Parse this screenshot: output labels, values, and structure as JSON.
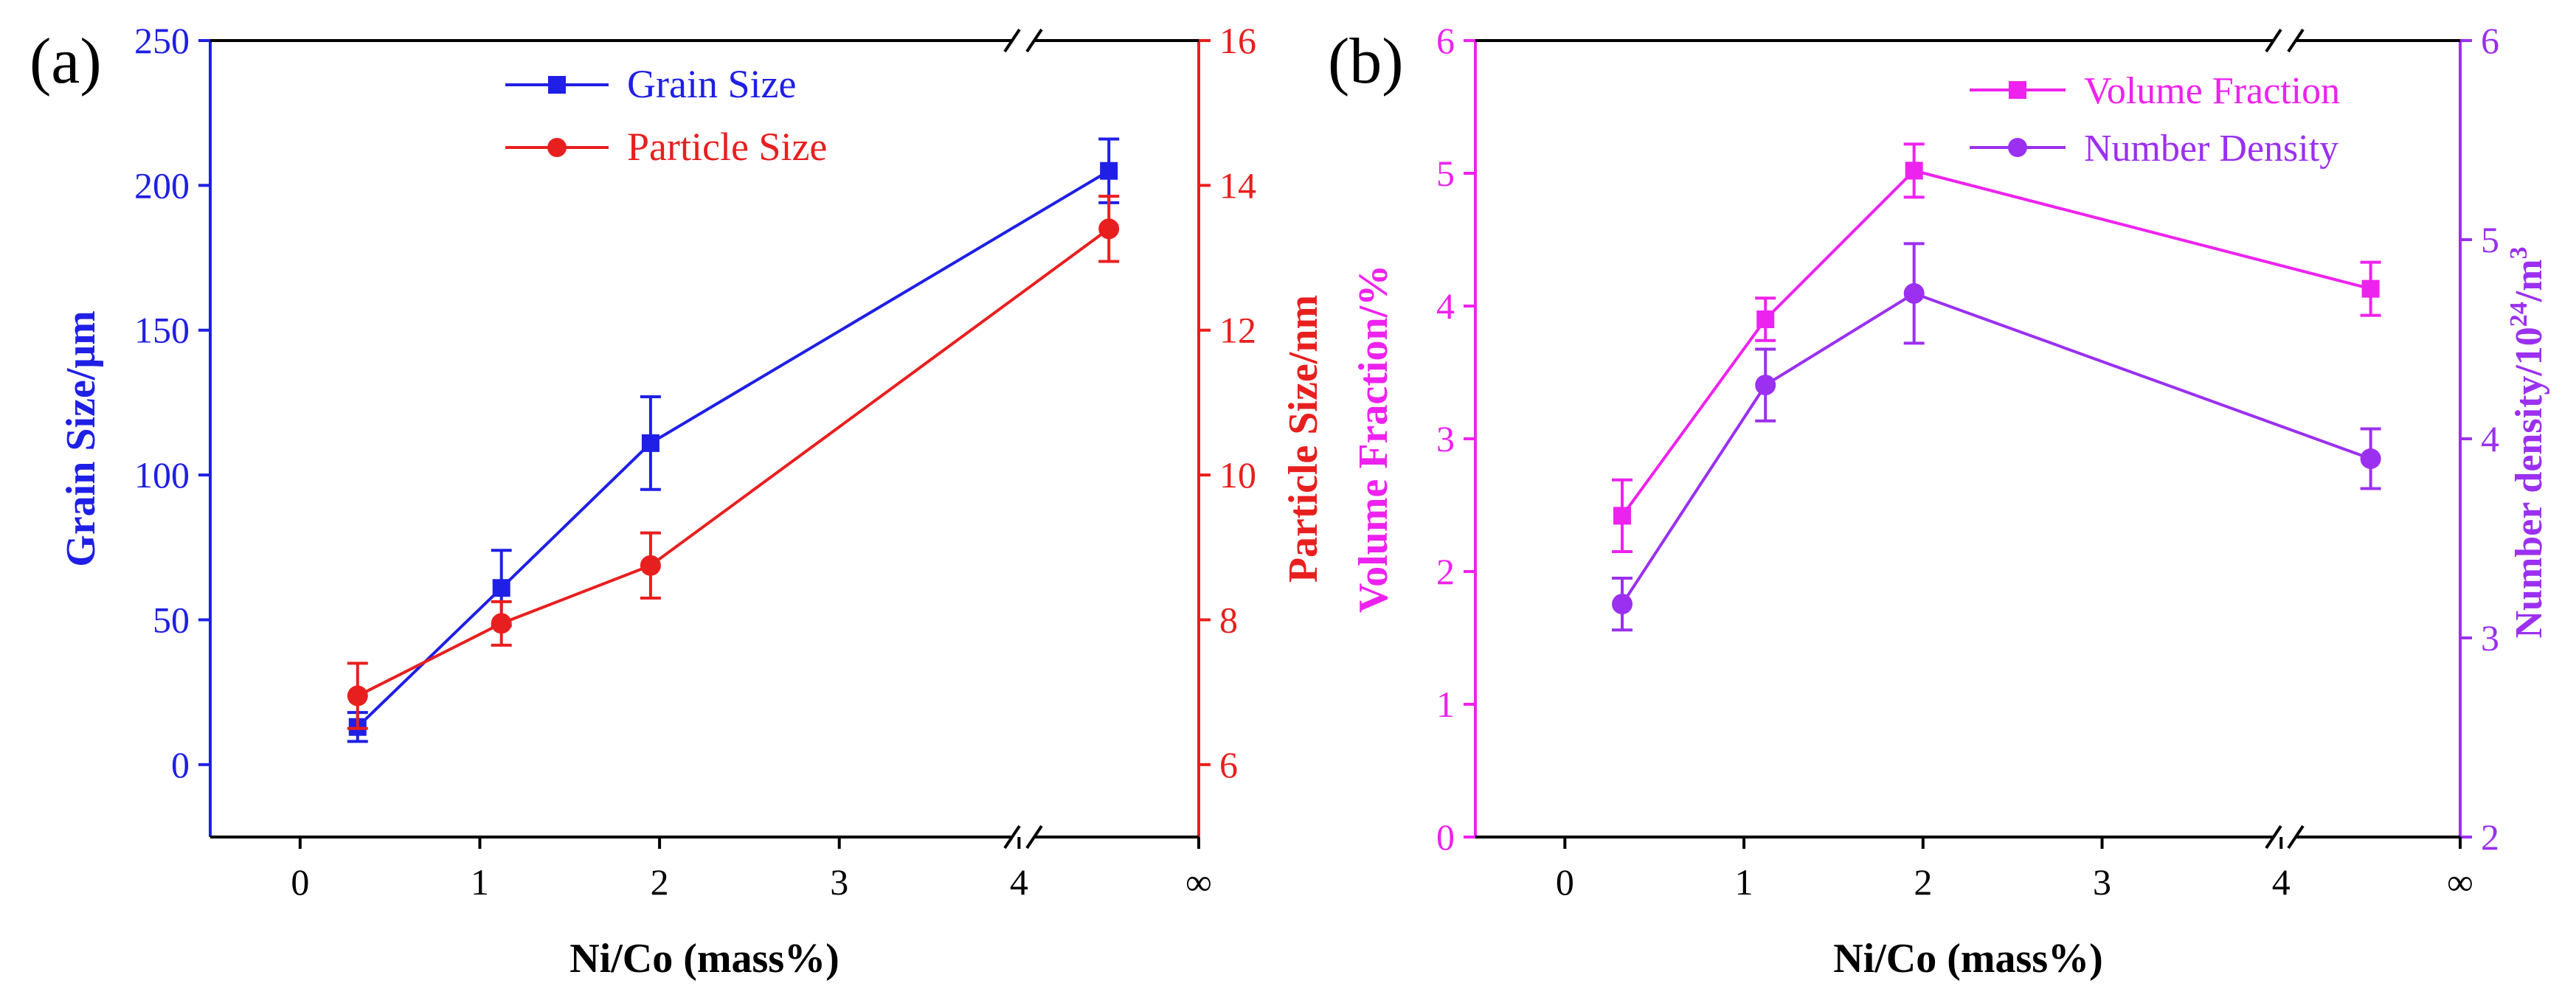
{
  "chart_data": [
    {
      "type": "line",
      "panel_label": "(a)",
      "xlabel": "Ni/Co (mass%)",
      "x_ticks": [
        "0",
        "1",
        "2",
        "3",
        "4",
        "∞"
      ],
      "xlim": [
        -0.5,
        5.0
      ],
      "x_break": true,
      "x_positions": [
        0.32,
        1.12,
        1.95,
        4.5
      ],
      "left_axis": {
        "label": "Grain Size/μm",
        "color": "#1f1fe6",
        "ylim": [
          -25,
          250
        ],
        "ticks": [
          "0",
          "50",
          "100",
          "150",
          "200",
          "250"
        ]
      },
      "right_axis": {
        "label": "Particle Size/nm",
        "color": "#e81f1f",
        "ylim": [
          5,
          16
        ],
        "ticks": [
          "6",
          "8",
          "10",
          "12",
          "14",
          "16"
        ]
      },
      "series": [
        {
          "name": "Grain Size",
          "axis": "left",
          "marker": "square",
          "color": "#1f1fe6",
          "values": [
            13,
            61,
            111,
            205
          ],
          "errors": [
            5,
            13,
            16,
            11
          ]
        },
        {
          "name": "Particle Size",
          "axis": "right",
          "marker": "circle",
          "color": "#e81f1f",
          "values": [
            6.95,
            7.95,
            8.75,
            13.4
          ],
          "errors": [
            0.45,
            0.3,
            0.45,
            0.45
          ]
        }
      ],
      "legend_position": "top-center"
    },
    {
      "type": "line",
      "panel_label": "(b)",
      "xlabel": "Ni/Co (mass%)",
      "x_ticks": [
        "0",
        "1",
        "2",
        "3",
        "4",
        "∞"
      ],
      "xlim": [
        -0.5,
        5.0
      ],
      "x_break": true,
      "x_positions": [
        0.32,
        1.12,
        1.95,
        4.5
      ],
      "left_axis": {
        "label": "Volume Fraction/%",
        "color": "#ee22ee",
        "ylim": [
          0,
          6
        ],
        "ticks": [
          "0",
          "1",
          "2",
          "3",
          "4",
          "5",
          "6"
        ]
      },
      "right_axis": {
        "label": "Number density/10",
        "label_sup1": "24",
        "label_mid": "/m",
        "label_sup2": "3",
        "color": "#9b30f0",
        "ylim": [
          2,
          6
        ],
        "ticks": [
          "2",
          "3",
          "4",
          "5",
          "6"
        ]
      },
      "series": [
        {
          "name": "Volume Fraction",
          "axis": "left",
          "marker": "square",
          "color": "#ee22ee",
          "values": [
            2.42,
            3.9,
            5.02,
            4.13
          ],
          "errors": [
            0.27,
            0.16,
            0.2,
            0.2
          ]
        },
        {
          "name": "Number Density",
          "axis": "right",
          "marker": "circle",
          "color": "#9b30f0",
          "values": [
            3.17,
            4.27,
            4.73,
            3.9
          ],
          "errors": [
            0.13,
            0.18,
            0.25,
            0.15
          ]
        }
      ],
      "legend_position": "top-right"
    }
  ]
}
